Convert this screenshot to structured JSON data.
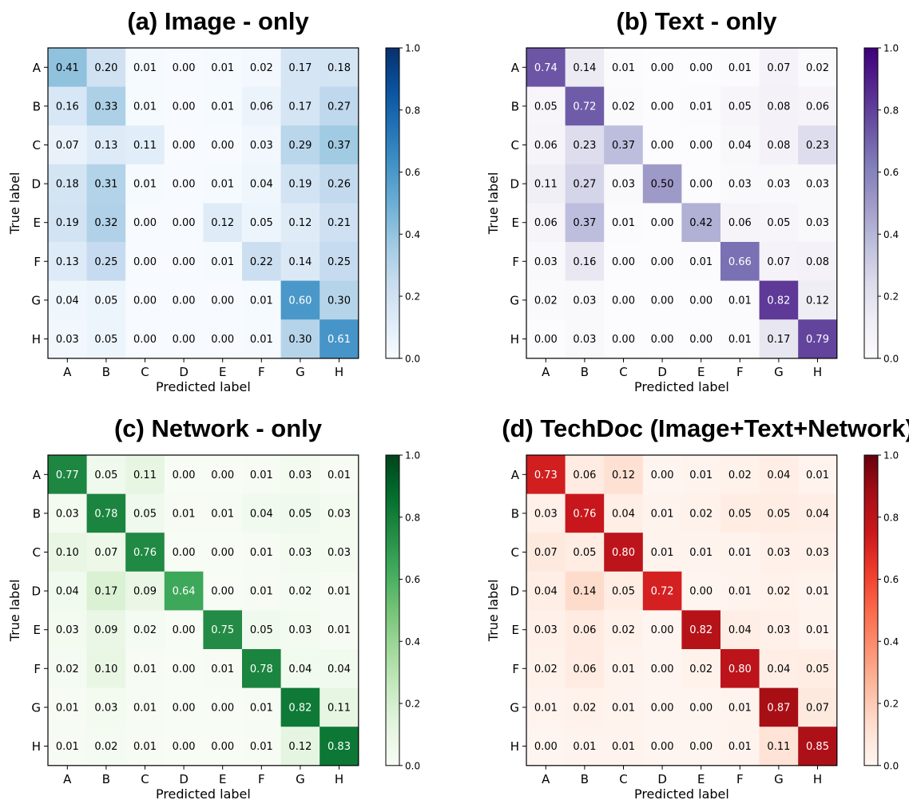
{
  "chart_data": [
    {
      "type": "heatmap",
      "title": "(a) Image - only",
      "xlabel": "Predicted label",
      "ylabel": "True label",
      "x_categories": [
        "A",
        "B",
        "C",
        "D",
        "E",
        "F",
        "G",
        "H"
      ],
      "y_categories": [
        "A",
        "B",
        "C",
        "D",
        "E",
        "F",
        "G",
        "H"
      ],
      "colormap": "Blues",
      "colors": {
        "low": "#f7fbff",
        "high": "#08306b"
      },
      "vmin": 0.0,
      "vmax": 1.0,
      "colorbar_ticks": [
        "0.0",
        "0.2",
        "0.4",
        "0.6",
        "0.8",
        "1.0"
      ],
      "values": [
        [
          "0.41",
          "0.20",
          "0.01",
          "0.00",
          "0.01",
          "0.02",
          "0.17",
          "0.18"
        ],
        [
          "0.16",
          "0.33",
          "0.01",
          "0.00",
          "0.01",
          "0.06",
          "0.17",
          "0.27"
        ],
        [
          "0.07",
          "0.13",
          "0.11",
          "0.00",
          "0.00",
          "0.03",
          "0.29",
          "0.37"
        ],
        [
          "0.18",
          "0.31",
          "0.01",
          "0.00",
          "0.01",
          "0.04",
          "0.19",
          "0.26"
        ],
        [
          "0.19",
          "0.32",
          "0.00",
          "0.00",
          "0.12",
          "0.05",
          "0.12",
          "0.21"
        ],
        [
          "0.13",
          "0.25",
          "0.00",
          "0.00",
          "0.01",
          "0.22",
          "0.14",
          "0.25"
        ],
        [
          "0.04",
          "0.05",
          "0.00",
          "0.00",
          "0.00",
          "0.01",
          "0.60",
          "0.30"
        ],
        [
          "0.03",
          "0.05",
          "0.00",
          "0.00",
          "0.00",
          "0.01",
          "0.30",
          "0.61"
        ]
      ]
    },
    {
      "type": "heatmap",
      "title": "(b) Text - only",
      "xlabel": "Predicted label",
      "ylabel": "True label",
      "x_categories": [
        "A",
        "B",
        "C",
        "D",
        "E",
        "F",
        "G",
        "H"
      ],
      "y_categories": [
        "A",
        "B",
        "C",
        "D",
        "E",
        "F",
        "G",
        "H"
      ],
      "colormap": "Purples",
      "colors": {
        "low": "#fcfbfd",
        "high": "#3f007d"
      },
      "vmin": 0.0,
      "vmax": 1.0,
      "colorbar_ticks": [
        "0.0",
        "0.2",
        "0.4",
        "0.6",
        "0.8",
        "1.0"
      ],
      "values": [
        [
          "0.74",
          "0.14",
          "0.01",
          "0.00",
          "0.00",
          "0.01",
          "0.07",
          "0.02"
        ],
        [
          "0.05",
          "0.72",
          "0.02",
          "0.00",
          "0.01",
          "0.05",
          "0.08",
          "0.06"
        ],
        [
          "0.06",
          "0.23",
          "0.37",
          "0.00",
          "0.00",
          "0.04",
          "0.08",
          "0.23"
        ],
        [
          "0.11",
          "0.27",
          "0.03",
          "0.50",
          "0.00",
          "0.03",
          "0.03",
          "0.03"
        ],
        [
          "0.06",
          "0.37",
          "0.01",
          "0.00",
          "0.42",
          "0.06",
          "0.05",
          "0.03"
        ],
        [
          "0.03",
          "0.16",
          "0.00",
          "0.00",
          "0.01",
          "0.66",
          "0.07",
          "0.08"
        ],
        [
          "0.02",
          "0.03",
          "0.00",
          "0.00",
          "0.00",
          "0.01",
          "0.82",
          "0.12"
        ],
        [
          "0.00",
          "0.03",
          "0.00",
          "0.00",
          "0.00",
          "0.01",
          "0.17",
          "0.79"
        ]
      ]
    },
    {
      "type": "heatmap",
      "title": "(c) Network - only",
      "xlabel": "Predicted label",
      "ylabel": "True label",
      "x_categories": [
        "A",
        "B",
        "C",
        "D",
        "E",
        "F",
        "G",
        "H"
      ],
      "y_categories": [
        "A",
        "B",
        "C",
        "D",
        "E",
        "F",
        "G",
        "H"
      ],
      "colormap": "Greens",
      "colors": {
        "low": "#f7fcf5",
        "high": "#00441b"
      },
      "vmin": 0.0,
      "vmax": 1.0,
      "colorbar_ticks": [
        "0.0",
        "0.2",
        "0.4",
        "0.6",
        "0.8",
        "1.0"
      ],
      "values": [
        [
          "0.77",
          "0.05",
          "0.11",
          "0.00",
          "0.00",
          "0.01",
          "0.03",
          "0.01"
        ],
        [
          "0.03",
          "0.78",
          "0.05",
          "0.01",
          "0.01",
          "0.04",
          "0.05",
          "0.03"
        ],
        [
          "0.10",
          "0.07",
          "0.76",
          "0.00",
          "0.00",
          "0.01",
          "0.03",
          "0.03"
        ],
        [
          "0.04",
          "0.17",
          "0.09",
          "0.64",
          "0.00",
          "0.01",
          "0.02",
          "0.01"
        ],
        [
          "0.03",
          "0.09",
          "0.02",
          "0.00",
          "0.75",
          "0.05",
          "0.03",
          "0.01"
        ],
        [
          "0.02",
          "0.10",
          "0.01",
          "0.00",
          "0.01",
          "0.78",
          "0.04",
          "0.04"
        ],
        [
          "0.01",
          "0.03",
          "0.01",
          "0.00",
          "0.00",
          "0.01",
          "0.82",
          "0.11"
        ],
        [
          "0.01",
          "0.02",
          "0.01",
          "0.00",
          "0.00",
          "0.01",
          "0.12",
          "0.83"
        ]
      ]
    },
    {
      "type": "heatmap",
      "title": "(d) TechDoc (Image+Text+Network)",
      "xlabel": "Predicted label",
      "ylabel": "True label",
      "x_categories": [
        "A",
        "B",
        "C",
        "D",
        "E",
        "F",
        "G",
        "H"
      ],
      "y_categories": [
        "A",
        "B",
        "C",
        "D",
        "E",
        "F",
        "G",
        "H"
      ],
      "colormap": "Reds",
      "colors": {
        "low": "#fff5f0",
        "high": "#67000d"
      },
      "vmin": 0.0,
      "vmax": 1.0,
      "colorbar_ticks": [
        "0.0",
        "0.2",
        "0.4",
        "0.6",
        "0.8",
        "1.0"
      ],
      "values": [
        [
          "0.73",
          "0.06",
          "0.12",
          "0.00",
          "0.01",
          "0.02",
          "0.04",
          "0.01"
        ],
        [
          "0.03",
          "0.76",
          "0.04",
          "0.01",
          "0.02",
          "0.05",
          "0.05",
          "0.04"
        ],
        [
          "0.07",
          "0.05",
          "0.80",
          "0.01",
          "0.01",
          "0.01",
          "0.03",
          "0.03"
        ],
        [
          "0.04",
          "0.14",
          "0.05",
          "0.72",
          "0.00",
          "0.01",
          "0.02",
          "0.01"
        ],
        [
          "0.03",
          "0.06",
          "0.02",
          "0.00",
          "0.82",
          "0.04",
          "0.03",
          "0.01"
        ],
        [
          "0.02",
          "0.06",
          "0.01",
          "0.00",
          "0.02",
          "0.80",
          "0.04",
          "0.05"
        ],
        [
          "0.01",
          "0.02",
          "0.01",
          "0.00",
          "0.00",
          "0.01",
          "0.87",
          "0.07"
        ],
        [
          "0.00",
          "0.01",
          "0.01",
          "0.00",
          "0.00",
          "0.01",
          "0.11",
          "0.85"
        ]
      ]
    }
  ]
}
